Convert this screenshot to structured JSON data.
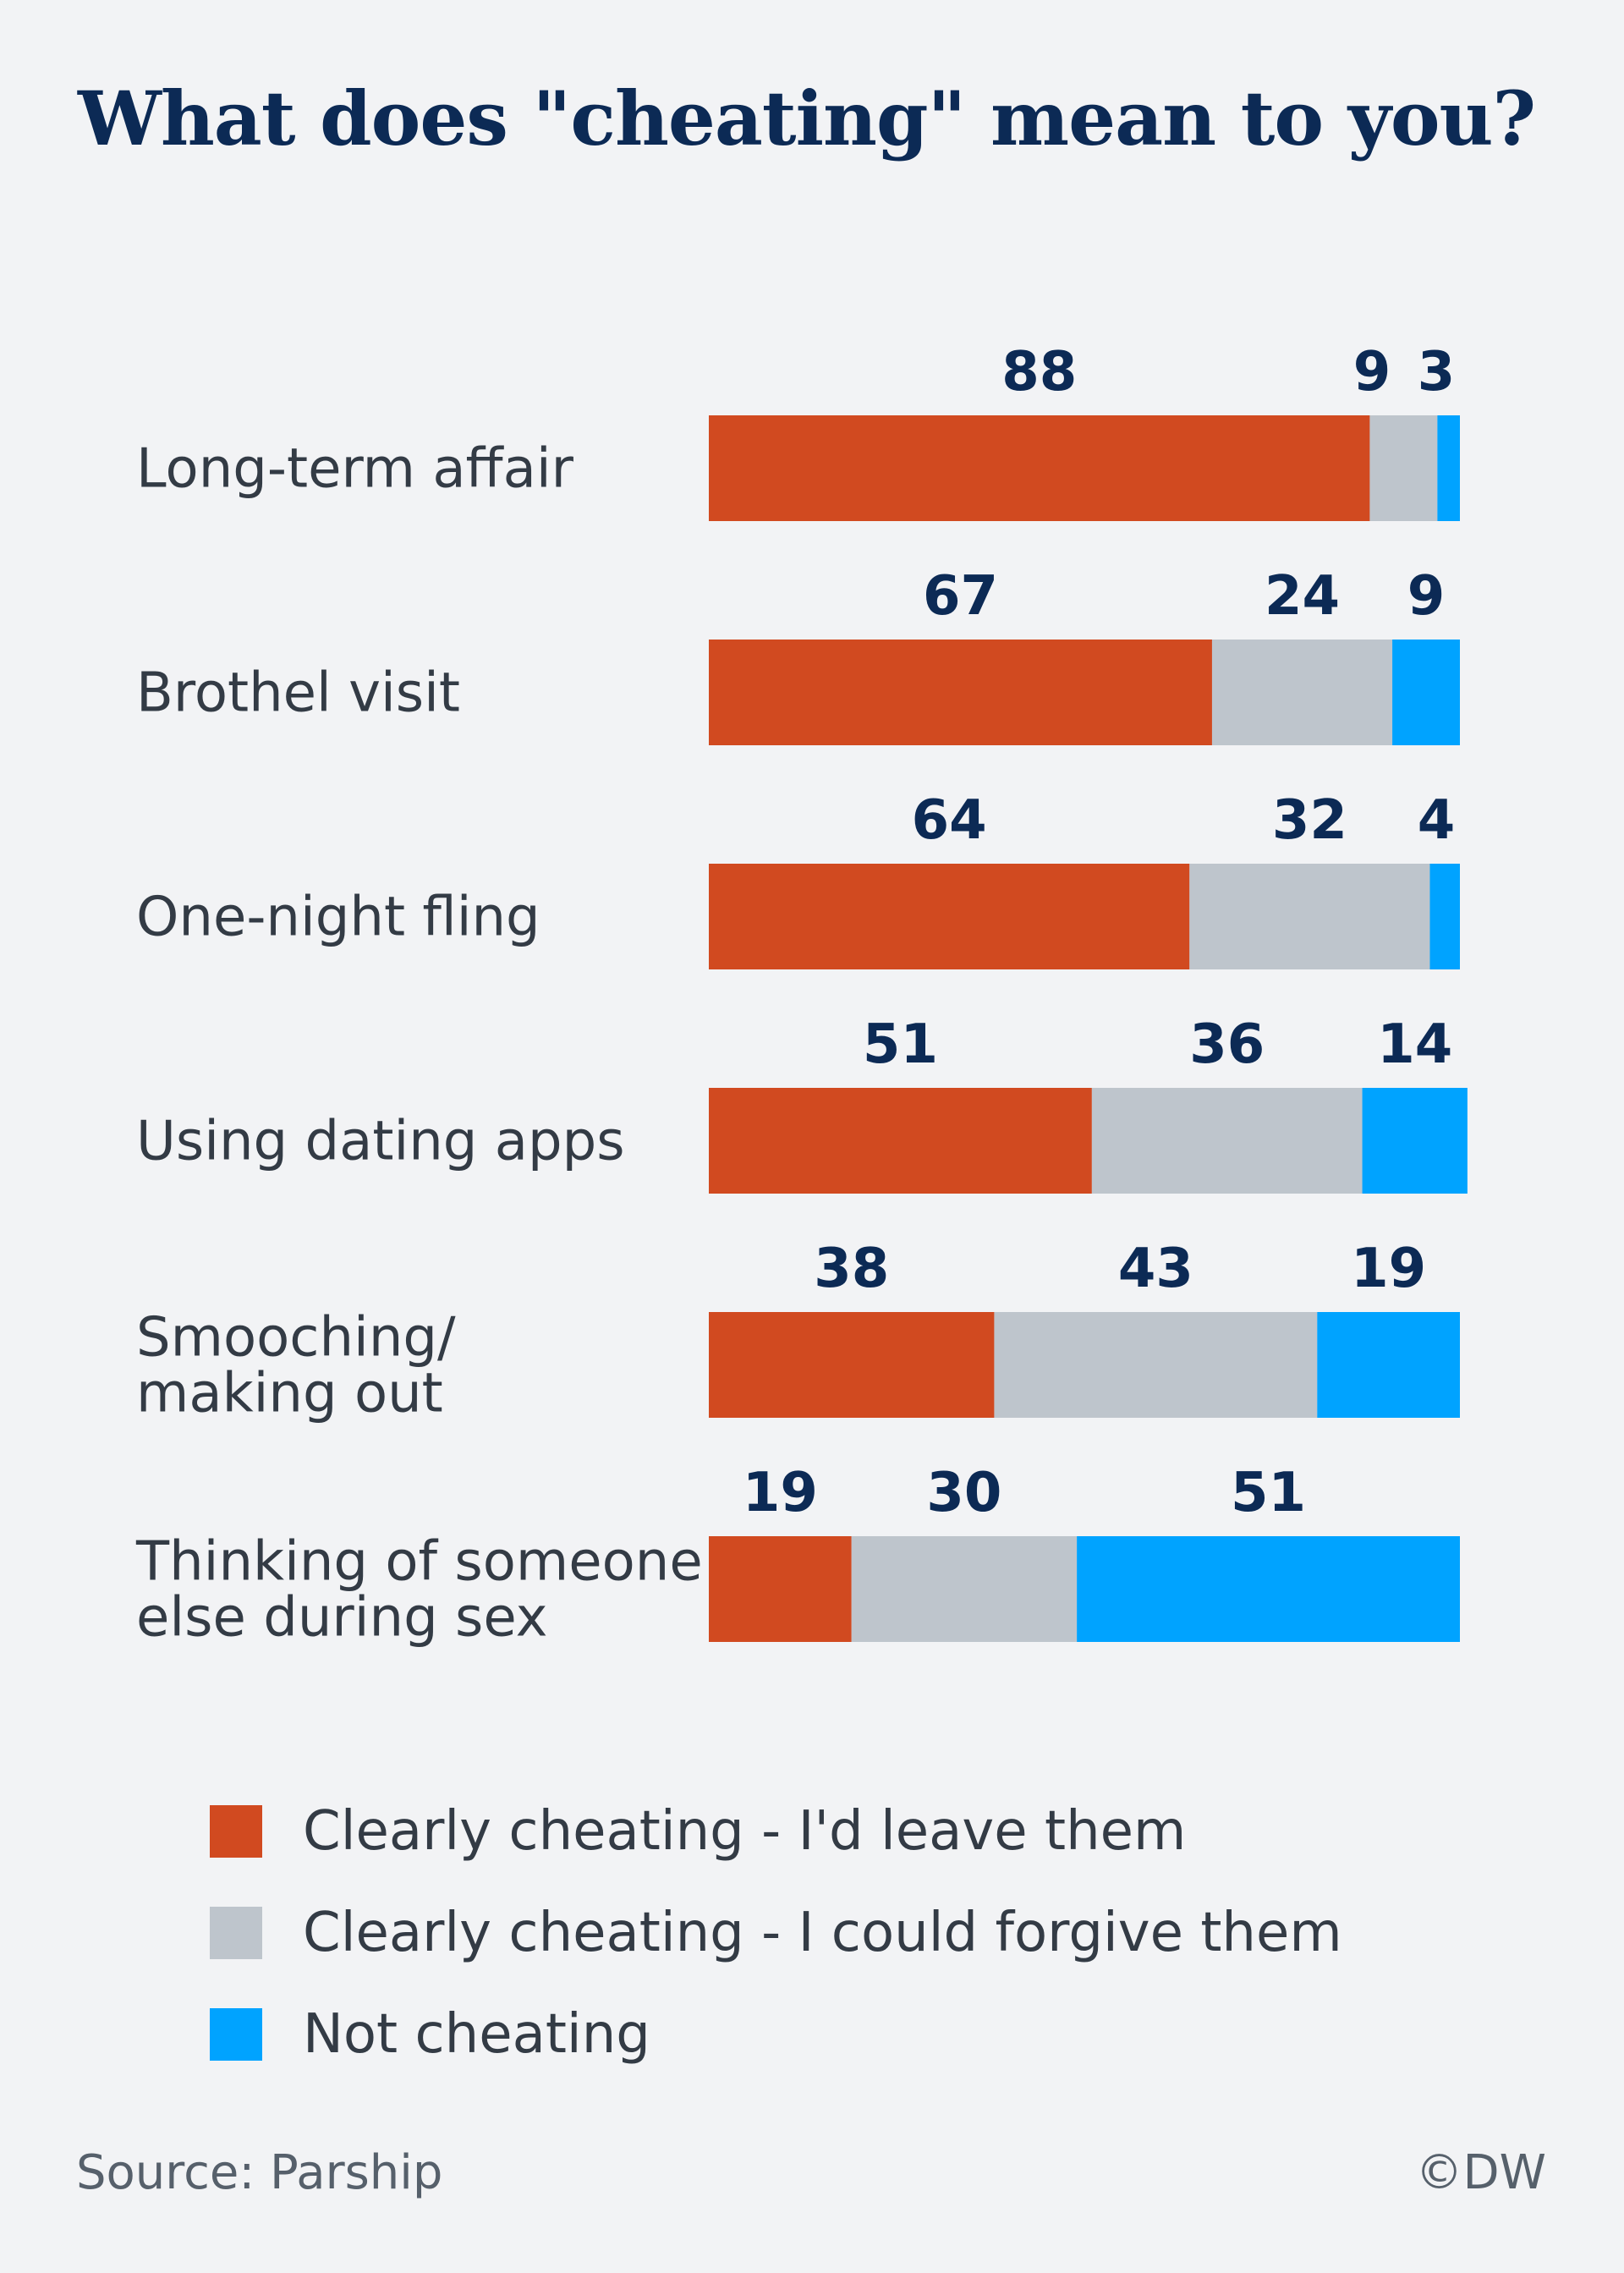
{
  "chart_data": {
    "type": "bar",
    "orientation": "horizontal",
    "stacked": true,
    "title": "What does \"cheating\" mean to you?",
    "categories": [
      "Long-term affair",
      "Brothel visit",
      "One-night fling",
      "Using dating apps",
      "Smooching/\nmaking out",
      "Thinking of someone\nelse during sex"
    ],
    "series": [
      {
        "name": "Clearly cheating - I'd leave them",
        "color": "#d14a20",
        "values": [
          88,
          67,
          64,
          51,
          38,
          19
        ]
      },
      {
        "name": "Clearly cheating - I could forgive them",
        "color": "#bec5cc",
        "values": [
          9,
          24,
          32,
          36,
          43,
          30
        ]
      },
      {
        "name": "Not cheating",
        "color": "#00a3ff",
        "values": [
          3,
          9,
          4,
          14,
          19,
          51
        ]
      }
    ],
    "xlim": [
      0,
      100
    ],
    "grid": false,
    "legend": "bottom",
    "source": "Source: Parship",
    "credit": "©DW"
  }
}
